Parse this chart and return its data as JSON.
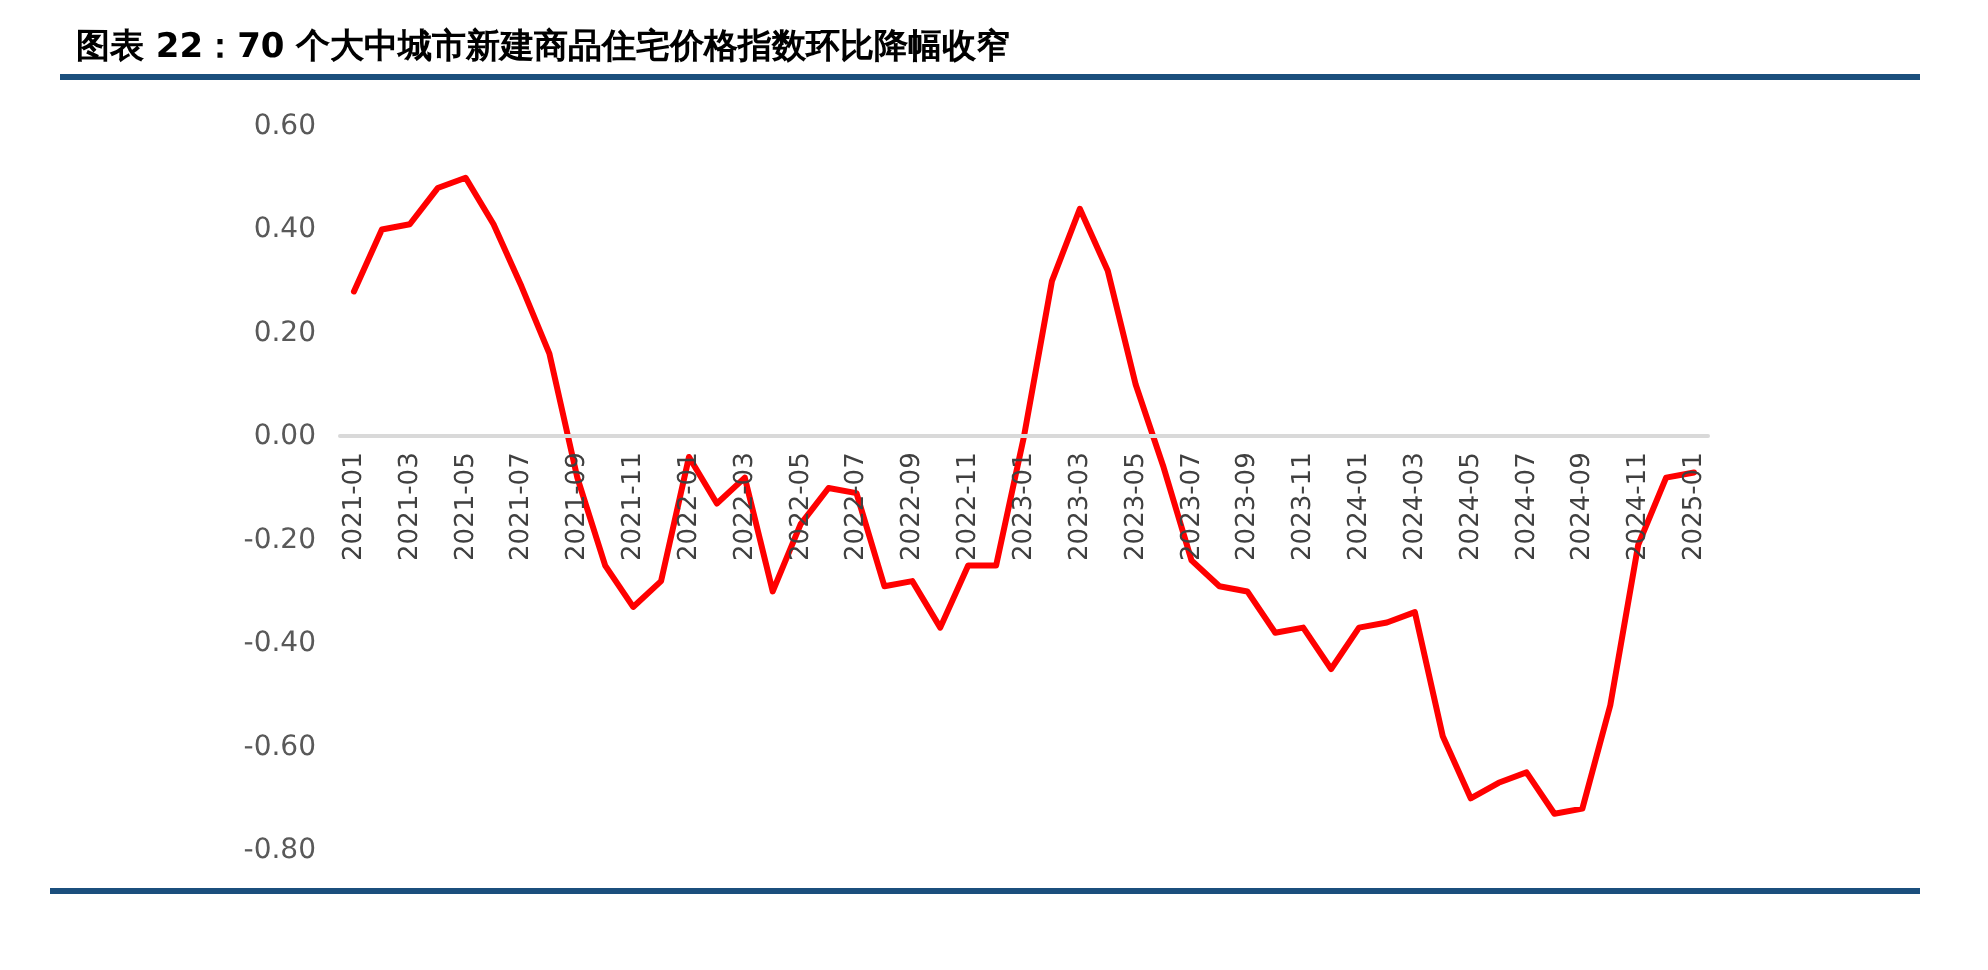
{
  "chart_data": {
    "type": "line",
    "title": "图表 22：70 个大中城市新建商品住宅价格指数环比降幅收窄",
    "categories": [
      "2021-01",
      null,
      "2021-03",
      null,
      "2021-05",
      null,
      "2021-07",
      null,
      "2021-09",
      null,
      "2021-11",
      null,
      "2022-01",
      null,
      "2022-03",
      null,
      "2022-05",
      null,
      "2022-07",
      null,
      "2022-09",
      null,
      "2022-11",
      null,
      "2023-01",
      null,
      "2023-03",
      null,
      "2023-05",
      null,
      "2023-07",
      null,
      "2023-09",
      null,
      "2023-11",
      null,
      "2024-01",
      null,
      "2024-03",
      null,
      "2024-05",
      null,
      "2024-07",
      null,
      "2024-09",
      null,
      "2024-11",
      null,
      "2025-01"
    ],
    "values": [
      0.28,
      0.4,
      0.41,
      0.48,
      0.5,
      0.41,
      0.29,
      0.16,
      -0.08,
      -0.25,
      -0.33,
      -0.28,
      -0.04,
      -0.13,
      -0.08,
      -0.3,
      -0.17,
      -0.1,
      -0.11,
      -0.29,
      -0.28,
      -0.37,
      -0.25,
      -0.25,
      0.0,
      0.3,
      0.44,
      0.32,
      0.1,
      -0.06,
      -0.24,
      -0.29,
      -0.3,
      -0.38,
      -0.37,
      -0.45,
      -0.37,
      -0.36,
      -0.34,
      -0.58,
      -0.7,
      -0.67,
      -0.65,
      -0.73,
      -0.72,
      -0.52,
      -0.21,
      -0.08,
      -0.07
    ],
    "color": "#ff0000",
    "ylim": [
      -0.8,
      0.6
    ],
    "yticks": [
      {
        "value": -0.8,
        "label": "-0.80"
      },
      {
        "value": -0.6,
        "label": "-0.60"
      },
      {
        "value": -0.4,
        "label": "-0.40"
      },
      {
        "value": -0.2,
        "label": "-0.20"
      },
      {
        "value": 0,
        "label": "0.00"
      },
      {
        "value": 0.2,
        "label": "0.20"
      },
      {
        "value": 0.4,
        "label": "0.40"
      },
      {
        "value": 0.6,
        "label": "0.60"
      }
    ],
    "grid": false,
    "marker": "none",
    "line_style": "solid"
  }
}
